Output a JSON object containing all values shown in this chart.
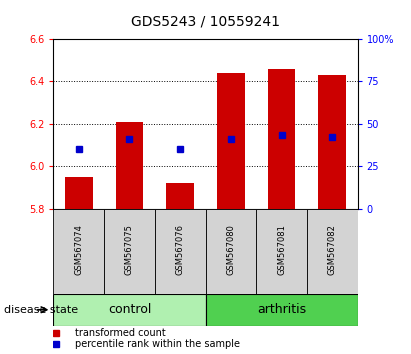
{
  "title": "GDS5243 / 10559241",
  "samples": [
    "GSM567074",
    "GSM567075",
    "GSM567076",
    "GSM567080",
    "GSM567081",
    "GSM567082"
  ],
  "bar_bottoms": [
    5.8,
    5.8,
    5.8,
    5.8,
    5.8,
    5.8
  ],
  "bar_tops": [
    5.95,
    6.21,
    5.92,
    6.44,
    6.46,
    6.43
  ],
  "blue_dot_values": [
    6.08,
    6.13,
    6.08,
    6.13,
    6.15,
    6.14
  ],
  "ylim": [
    5.8,
    6.6
  ],
  "y2lim": [
    0,
    100
  ],
  "yticks": [
    5.8,
    6.0,
    6.2,
    6.4,
    6.6
  ],
  "y2ticks": [
    0,
    25,
    50,
    75,
    100
  ],
  "y2ticklabels": [
    "0",
    "25",
    "50",
    "75",
    "100%"
  ],
  "bar_color": "#cc0000",
  "dot_color": "#0000cc",
  "bar_width": 0.55,
  "control_color": "#b0f0b0",
  "arthritis_color": "#50d050",
  "label_bg": "#d3d3d3",
  "title_fontsize": 10,
  "tick_fontsize": 7,
  "sample_fontsize": 6,
  "group_fontsize": 9,
  "legend_fontsize": 7,
  "disease_state_fontsize": 8,
  "legend_red_label": "transformed count",
  "legend_blue_label": "percentile rank within the sample",
  "disease_state_label": "disease state"
}
